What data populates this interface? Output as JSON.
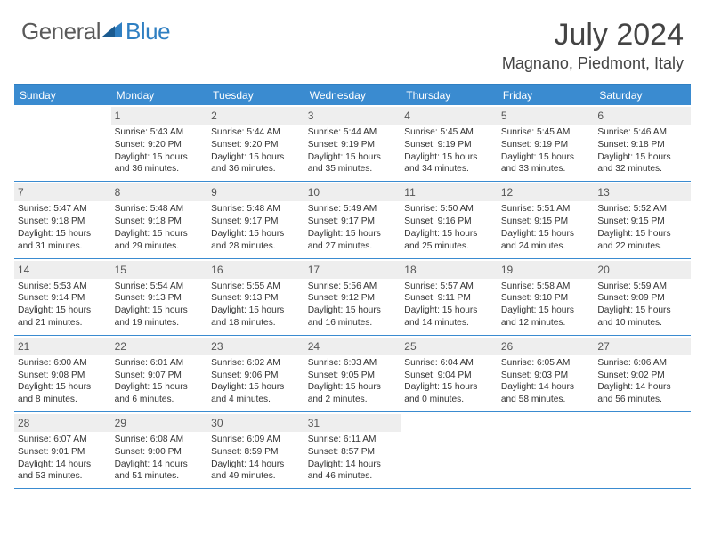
{
  "logo": {
    "general": "General",
    "blue": "Blue"
  },
  "title": "July 2024",
  "location": "Magnano, Piedmont, Italy",
  "colors": {
    "header_bg": "#3a8bd0",
    "border": "#2f7fc2",
    "daynum_bg": "#eeeeee",
    "text": "#333333",
    "logo_gray": "#5a5a5a",
    "logo_blue": "#2f7fc2"
  },
  "days_of_week": [
    "Sunday",
    "Monday",
    "Tuesday",
    "Wednesday",
    "Thursday",
    "Friday",
    "Saturday"
  ],
  "start_offset": 1,
  "days": [
    {
      "n": 1,
      "sunrise": "5:43 AM",
      "sunset": "9:20 PM",
      "daylight": "15 hours and 36 minutes."
    },
    {
      "n": 2,
      "sunrise": "5:44 AM",
      "sunset": "9:20 PM",
      "daylight": "15 hours and 36 minutes."
    },
    {
      "n": 3,
      "sunrise": "5:44 AM",
      "sunset": "9:19 PM",
      "daylight": "15 hours and 35 minutes."
    },
    {
      "n": 4,
      "sunrise": "5:45 AM",
      "sunset": "9:19 PM",
      "daylight": "15 hours and 34 minutes."
    },
    {
      "n": 5,
      "sunrise": "5:45 AM",
      "sunset": "9:19 PM",
      "daylight": "15 hours and 33 minutes."
    },
    {
      "n": 6,
      "sunrise": "5:46 AM",
      "sunset": "9:18 PM",
      "daylight": "15 hours and 32 minutes."
    },
    {
      "n": 7,
      "sunrise": "5:47 AM",
      "sunset": "9:18 PM",
      "daylight": "15 hours and 31 minutes."
    },
    {
      "n": 8,
      "sunrise": "5:48 AM",
      "sunset": "9:18 PM",
      "daylight": "15 hours and 29 minutes."
    },
    {
      "n": 9,
      "sunrise": "5:48 AM",
      "sunset": "9:17 PM",
      "daylight": "15 hours and 28 minutes."
    },
    {
      "n": 10,
      "sunrise": "5:49 AM",
      "sunset": "9:17 PM",
      "daylight": "15 hours and 27 minutes."
    },
    {
      "n": 11,
      "sunrise": "5:50 AM",
      "sunset": "9:16 PM",
      "daylight": "15 hours and 25 minutes."
    },
    {
      "n": 12,
      "sunrise": "5:51 AM",
      "sunset": "9:15 PM",
      "daylight": "15 hours and 24 minutes."
    },
    {
      "n": 13,
      "sunrise": "5:52 AM",
      "sunset": "9:15 PM",
      "daylight": "15 hours and 22 minutes."
    },
    {
      "n": 14,
      "sunrise": "5:53 AM",
      "sunset": "9:14 PM",
      "daylight": "15 hours and 21 minutes."
    },
    {
      "n": 15,
      "sunrise": "5:54 AM",
      "sunset": "9:13 PM",
      "daylight": "15 hours and 19 minutes."
    },
    {
      "n": 16,
      "sunrise": "5:55 AM",
      "sunset": "9:13 PM",
      "daylight": "15 hours and 18 minutes."
    },
    {
      "n": 17,
      "sunrise": "5:56 AM",
      "sunset": "9:12 PM",
      "daylight": "15 hours and 16 minutes."
    },
    {
      "n": 18,
      "sunrise": "5:57 AM",
      "sunset": "9:11 PM",
      "daylight": "15 hours and 14 minutes."
    },
    {
      "n": 19,
      "sunrise": "5:58 AM",
      "sunset": "9:10 PM",
      "daylight": "15 hours and 12 minutes."
    },
    {
      "n": 20,
      "sunrise": "5:59 AM",
      "sunset": "9:09 PM",
      "daylight": "15 hours and 10 minutes."
    },
    {
      "n": 21,
      "sunrise": "6:00 AM",
      "sunset": "9:08 PM",
      "daylight": "15 hours and 8 minutes."
    },
    {
      "n": 22,
      "sunrise": "6:01 AM",
      "sunset": "9:07 PM",
      "daylight": "15 hours and 6 minutes."
    },
    {
      "n": 23,
      "sunrise": "6:02 AM",
      "sunset": "9:06 PM",
      "daylight": "15 hours and 4 minutes."
    },
    {
      "n": 24,
      "sunrise": "6:03 AM",
      "sunset": "9:05 PM",
      "daylight": "15 hours and 2 minutes."
    },
    {
      "n": 25,
      "sunrise": "6:04 AM",
      "sunset": "9:04 PM",
      "daylight": "15 hours and 0 minutes."
    },
    {
      "n": 26,
      "sunrise": "6:05 AM",
      "sunset": "9:03 PM",
      "daylight": "14 hours and 58 minutes."
    },
    {
      "n": 27,
      "sunrise": "6:06 AM",
      "sunset": "9:02 PM",
      "daylight": "14 hours and 56 minutes."
    },
    {
      "n": 28,
      "sunrise": "6:07 AM",
      "sunset": "9:01 PM",
      "daylight": "14 hours and 53 minutes."
    },
    {
      "n": 29,
      "sunrise": "6:08 AM",
      "sunset": "9:00 PM",
      "daylight": "14 hours and 51 minutes."
    },
    {
      "n": 30,
      "sunrise": "6:09 AM",
      "sunset": "8:59 PM",
      "daylight": "14 hours and 49 minutes."
    },
    {
      "n": 31,
      "sunrise": "6:11 AM",
      "sunset": "8:57 PM",
      "daylight": "14 hours and 46 minutes."
    }
  ],
  "labels": {
    "sunrise": "Sunrise:",
    "sunset": "Sunset:",
    "daylight": "Daylight:"
  }
}
